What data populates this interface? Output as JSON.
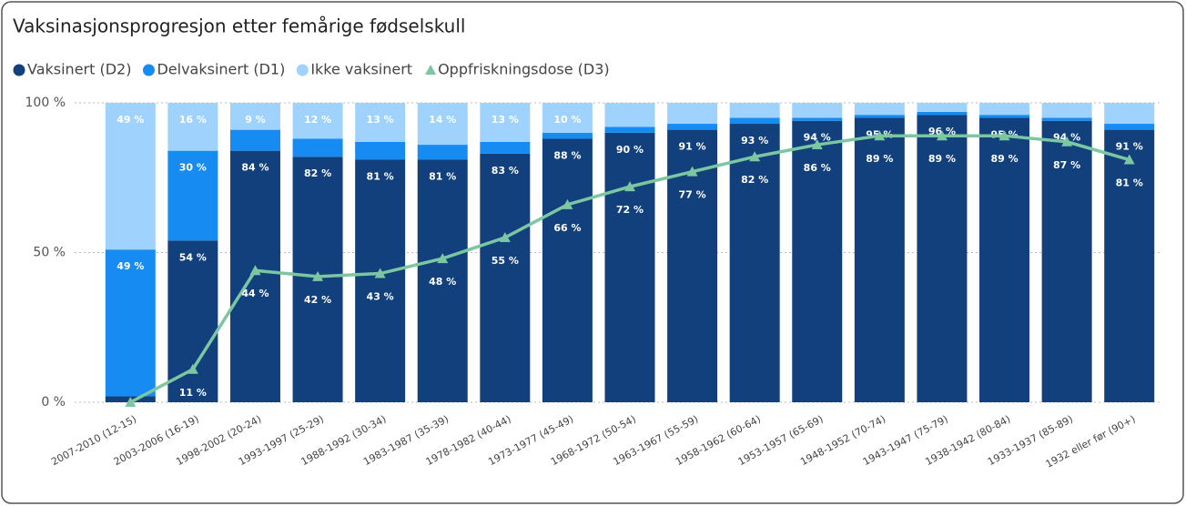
{
  "chart_data": {
    "type": "bar",
    "stacked": true,
    "title": "Vaksinasjonsprogresjon etter femårige fødselskull",
    "categories": [
      "2007-2010 (12-15)",
      "2003-2006 (16-19)",
      "1998-2002 (20-24)",
      "1993-1997 (25-29)",
      "1988-1992 (30-34)",
      "1983-1987 (35-39)",
      "1978-1982 (40-44)",
      "1973-1977 (45-49)",
      "1968-1972 (50-54)",
      "1963-1967 (55-59)",
      "1958-1962 (60-64)",
      "1953-1957 (65-69)",
      "1948-1952 (70-74)",
      "1943-1947 (75-79)",
      "1938-1942 (80-84)",
      "1933-1937 (85-89)",
      "1932 eller før (90+)"
    ],
    "series": [
      {
        "name": "Vaksinert (D2)",
        "color": "#11407c",
        "type": "bar",
        "values": [
          2,
          54,
          84,
          82,
          81,
          81,
          83,
          88,
          90,
          91,
          93,
          94,
          95,
          96,
          95,
          94,
          91
        ],
        "value_labels": [
          null,
          "54 %",
          "84 %",
          "82 %",
          "81 %",
          "81 %",
          "83 %",
          "88 %",
          "90 %",
          "91 %",
          "93 %",
          "94 %",
          "95 %",
          "96 %",
          "95 %",
          "94 %",
          "91 %"
        ]
      },
      {
        "name": "Delvaksinert (D1)",
        "color": "#168cf2",
        "type": "bar",
        "values": [
          49,
          30,
          7,
          6,
          6,
          5,
          4,
          2,
          2,
          2,
          2,
          1,
          1,
          1,
          1,
          1,
          2
        ],
        "value_labels": [
          "49 %",
          "30 %",
          null,
          null,
          null,
          null,
          null,
          null,
          null,
          null,
          null,
          null,
          null,
          null,
          null,
          null,
          null
        ]
      },
      {
        "name": "Ikke vaksinert",
        "color": "#9fd3fd",
        "type": "bar",
        "values": [
          49,
          16,
          9,
          12,
          13,
          14,
          13,
          10,
          8,
          7,
          5,
          5,
          4,
          3,
          4,
          5,
          7
        ],
        "value_labels": [
          "49 %",
          "16 %",
          "9 %",
          "12 %",
          "13 %",
          "14 %",
          "13 %",
          "10 %",
          null,
          null,
          null,
          null,
          null,
          null,
          null,
          null,
          null
        ]
      },
      {
        "name": "Oppfriskningsdose (D3)",
        "color": "#7dc6a2",
        "type": "line",
        "values": [
          0,
          11,
          44,
          42,
          43,
          48,
          55,
          66,
          72,
          77,
          82,
          86,
          89,
          89,
          89,
          87,
          81
        ],
        "value_labels": [
          null,
          "11 %",
          "44 %",
          "42 %",
          "43 %",
          "48 %",
          "55 %",
          "66 %",
          "72 %",
          "77 %",
          "82 %",
          "86 %",
          "89 %",
          "89 %",
          "89 %",
          "87 %",
          "81 %"
        ]
      }
    ],
    "ylim": [
      0,
      100
    ],
    "yticks": [
      {
        "value": 0,
        "label": "0 %"
      },
      {
        "value": 50,
        "label": "50 %"
      },
      {
        "value": 100,
        "label": "100 %"
      }
    ],
    "grid": true,
    "legend": "top-left"
  }
}
